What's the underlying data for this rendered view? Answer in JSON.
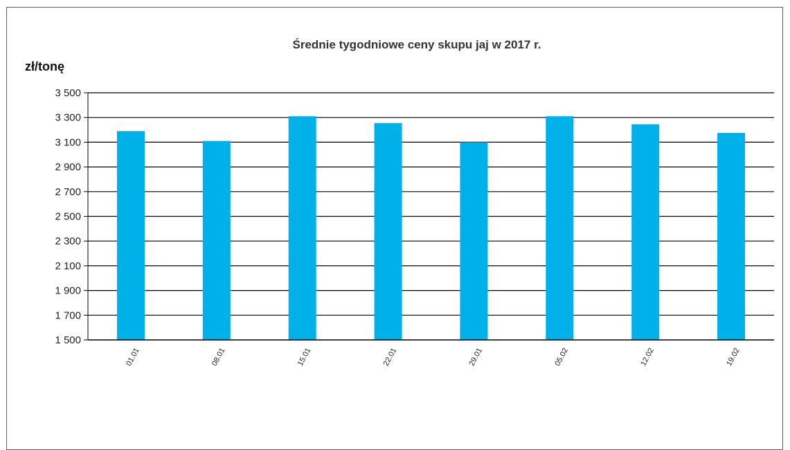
{
  "chart_data": {
    "type": "bar",
    "title": "Średnie  tygodniowe  ceny skupu  jaj w 2017  r.",
    "ylabel": "zł/tonę",
    "xlabel": "",
    "categories": [
      "01.01",
      "08.01",
      "15.01",
      "22.01",
      "29.01",
      "05.02",
      "12.02",
      "19.02"
    ],
    "values": [
      3190,
      3110,
      3310,
      3255,
      3100,
      3310,
      3245,
      3175
    ],
    "ylim": [
      1500,
      3500
    ],
    "yticks": [
      1500,
      1700,
      1900,
      2100,
      2300,
      2500,
      2700,
      2900,
      3100,
      3300,
      3500
    ],
    "ytick_labels": [
      "1 500",
      "1 700",
      "1 900",
      "2 100",
      "2 300",
      "2 500",
      "2 700",
      "2 900",
      "3 100",
      "3 300",
      "3 500"
    ],
    "grid": true,
    "legend": "none",
    "bar_color": "#00b0e8"
  }
}
